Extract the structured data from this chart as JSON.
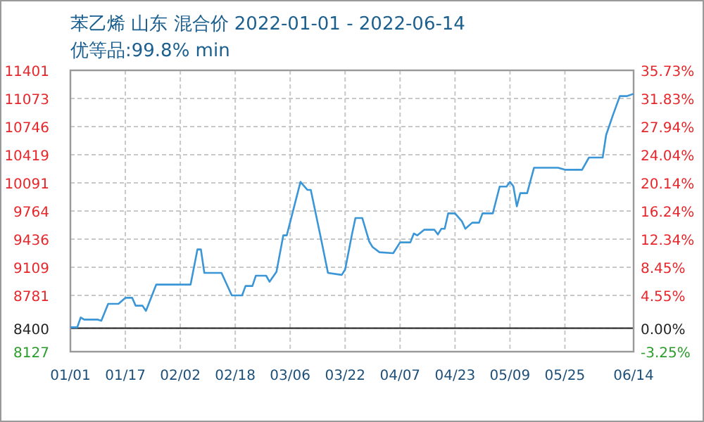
{
  "chart_data": {
    "type": "line",
    "title": "苯乙烯 山东 混合价 2022-01-01 - 2022-06-14",
    "subtitle": "优等品:99.8% min",
    "x": [
      "2022-01-01",
      "2022-01-03",
      "2022-01-04",
      "2022-01-05",
      "2022-01-09",
      "2022-01-10",
      "2022-01-12",
      "2022-01-15",
      "2022-01-17",
      "2022-01-19",
      "2022-01-20",
      "2022-01-22",
      "2022-01-23",
      "2022-01-26",
      "2022-02-05",
      "2022-02-07",
      "2022-02-08",
      "2022-02-09",
      "2022-02-14",
      "2022-02-17",
      "2022-02-20",
      "2022-02-21",
      "2022-02-23",
      "2022-02-24",
      "2022-02-27",
      "2022-02-28",
      "2022-03-02",
      "2022-03-04",
      "2022-03-05",
      "2022-03-07",
      "2022-03-09",
      "2022-03-11",
      "2022-03-12",
      "2022-03-15",
      "2022-03-17",
      "2022-03-21",
      "2022-03-22",
      "2022-03-24",
      "2022-03-25",
      "2022-03-27",
      "2022-03-29",
      "2022-03-30",
      "2022-04-01",
      "2022-04-05",
      "2022-04-07",
      "2022-04-10",
      "2022-04-11",
      "2022-04-12",
      "2022-04-14",
      "2022-04-17",
      "2022-04-18",
      "2022-04-19",
      "2022-04-20",
      "2022-04-21",
      "2022-04-23",
      "2022-04-25",
      "2022-04-26",
      "2022-04-28",
      "2022-04-30",
      "2022-05-01",
      "2022-05-04",
      "2022-05-06",
      "2022-05-08",
      "2022-05-09",
      "2022-05-10",
      "2022-05-11",
      "2022-05-12",
      "2022-05-14",
      "2022-05-16",
      "2022-05-23",
      "2022-05-25",
      "2022-05-30",
      "2022-06-01",
      "2022-06-05",
      "2022-06-06",
      "2022-06-08",
      "2022-06-10",
      "2022-06-12",
      "2022-06-14"
    ],
    "series": [
      {
        "color": "#3a96d6",
        "values": [
          8410,
          8410,
          8525,
          8500,
          8500,
          8487,
          8684,
          8684,
          8754,
          8754,
          8662,
          8662,
          8602,
          8908,
          8908,
          9317,
          9317,
          9044,
          9044,
          8782,
          8782,
          8891,
          8891,
          9011,
          9011,
          8941,
          9055,
          9481,
          9481,
          9792,
          10103,
          10010,
          10010,
          9437,
          9044,
          9020,
          9082,
          9493,
          9682,
          9682,
          9410,
          9344,
          9284,
          9273,
          9399,
          9399,
          9502,
          9480,
          9546,
          9546,
          9491,
          9557,
          9557,
          9736,
          9736,
          9644,
          9557,
          9628,
          9628,
          9736,
          9736,
          10048,
          10048,
          10103,
          10050,
          9818,
          9972,
          9972,
          10267,
          10267,
          10244,
          10244,
          10386,
          10386,
          10648,
          10882,
          11101,
          11101,
          11128
        ]
      }
    ],
    "xlim": [
      "2022-01-01",
      "2022-06-14"
    ],
    "xticks": [
      {
        "value": "2022-01-01",
        "label": "01/01"
      },
      {
        "value": "2022-01-17",
        "label": "01/17"
      },
      {
        "value": "2022-02-02",
        "label": "02/02"
      },
      {
        "value": "2022-02-18",
        "label": "02/18"
      },
      {
        "value": "2022-03-06",
        "label": "03/06"
      },
      {
        "value": "2022-03-22",
        "label": "03/22"
      },
      {
        "value": "2022-04-07",
        "label": "04/07"
      },
      {
        "value": "2022-04-23",
        "label": "04/23"
      },
      {
        "value": "2022-05-09",
        "label": "05/09"
      },
      {
        "value": "2022-05-25",
        "label": "05/25"
      },
      {
        "value": "2022-06-14",
        "label": "06/14"
      }
    ],
    "ylim": [
      8127,
      11401
    ],
    "yticks": [
      8127,
      8400,
      8781,
      9109,
      9436,
      9764,
      10091,
      10419,
      10746,
      11073,
      11401
    ],
    "y2lim": [
      -3.25,
      35.73
    ],
    "y2ticks": [
      {
        "value": -3.25,
        "label": "-3.25%"
      },
      {
        "value": 0,
        "label": "0.00%"
      },
      {
        "value": 4.55,
        "label": "4.55%"
      },
      {
        "value": 8.45,
        "label": "8.45%"
      },
      {
        "value": 12.34,
        "label": "12.34%"
      },
      {
        "value": 16.24,
        "label": "16.24%"
      },
      {
        "value": 20.14,
        "label": "20.14%"
      },
      {
        "value": 24.04,
        "label": "24.04%"
      },
      {
        "value": 27.94,
        "label": "27.94%"
      },
      {
        "value": 31.83,
        "label": "31.83%"
      },
      {
        "value": 35.73,
        "label": "35.73%"
      }
    ],
    "ref_lines": [
      {
        "axis": "y",
        "value": 8400,
        "color": "#333333"
      }
    ],
    "grid": true,
    "line_style": "solid",
    "marker": "none"
  }
}
